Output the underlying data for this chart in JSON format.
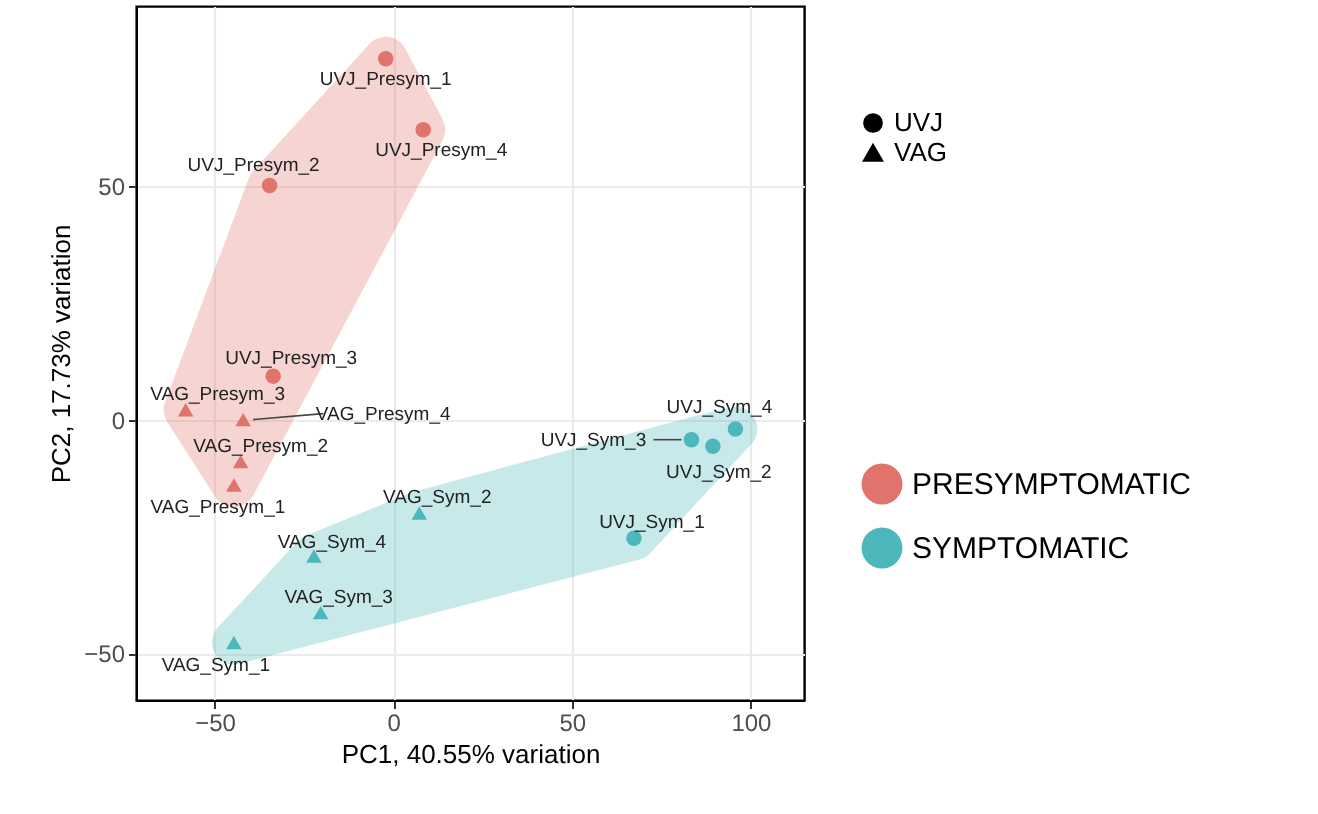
{
  "chart_data": {
    "type": "scatter",
    "xlabel": "PC1, 40.55% variation",
    "ylabel": "PC2, 17.73% variation",
    "xlim": [
      -72,
      115
    ],
    "ylim": [
      -60,
      88.5
    ],
    "xticks": [
      -50,
      0,
      50,
      100
    ],
    "yticks": [
      -50,
      0,
      50
    ],
    "grid": true,
    "legend": "right",
    "series": [
      {
        "name": "PRESYMPTOMATIC",
        "color": "#e0736b",
        "marker": "circle",
        "x": [
          -2.1,
          -34.6,
          -33.6,
          8.4
        ],
        "values": [
          77.2,
          50.1,
          9.3,
          62
        ]
      },
      {
        "color": "#e0736b",
        "marker": "triangle",
        "x": [
          -44.6,
          -42.7,
          -58.1,
          -42
        ],
        "values": [
          -14,
          -9,
          2.1,
          0
        ]
      },
      {
        "name": "SYMPTOMATIC",
        "color": "#4db8bb",
        "marker": "circle",
        "x": [
          67.4,
          89.5,
          83.5,
          95.8
        ],
        "values": [
          -25.4,
          -5.7,
          -4.3,
          -2
        ]
      },
      {
        "color": "#4db8bb",
        "marker": "triangle",
        "x": [
          -44.6,
          7.3,
          -20.3,
          -22.2
        ],
        "values": [
          -47.7,
          -20,
          -41.3,
          -29.2
        ]
      }
    ],
    "annotations": [
      "UVJ",
      "VAG",
      {
        "text": "UVJ_Presym_1",
        "x": -2.1,
        "y": 77.2
      },
      {
        "text": "UVJ_Presym_2",
        "x": -34.6,
        "y": 50.1
      },
      {
        "text": "UVJ_Presym_3",
        "x": -33.6,
        "y": 9.3
      },
      {
        "text": "UVJ_Presym_4",
        "x": 8.4,
        "y": 62
      },
      {
        "text": "VAG_Presym_1",
        "x": -44.6,
        "y": -14
      },
      {
        "text": "VAG_Presym_2",
        "x": -42.7,
        "y": -9
      },
      {
        "text": "VAG_Presym_3",
        "x": -58.1,
        "y": 2.1
      },
      {
        "text": "VAG_Presym_4",
        "x": -42,
        "y": 0
      },
      {
        "text": "UVJ_Sym_1",
        "x": 67.4,
        "y": -25.4
      },
      {
        "text": "UVJ_Sym_2",
        "x": 89.5,
        "y": -5.7
      },
      {
        "text": "UVJ_Sym_3",
        "x": 83.5,
        "y": -4.3
      },
      {
        "text": "UVJ_Sym_4",
        "x": 95.8,
        "y": -2
      },
      {
        "text": "VAG_Sym_1",
        "x": -44.6,
        "y": -47.7
      },
      {
        "text": "VAG_Sym_2",
        "x": 7.3,
        "y": -20
      },
      {
        "text": "VAG_Sym_3",
        "x": -20.3,
        "y": -41.3
      },
      {
        "text": "VAG_Sym_4",
        "x": -22.2,
        "y": -29.2
      }
    ]
  }
}
